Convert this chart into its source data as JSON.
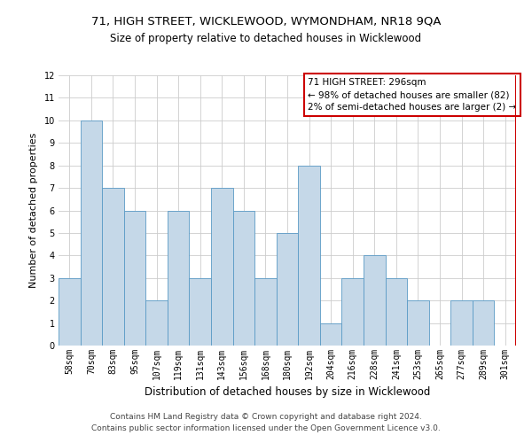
{
  "title": "71, HIGH STREET, WICKLEWOOD, WYMONDHAM, NR18 9QA",
  "subtitle": "Size of property relative to detached houses in Wicklewood",
  "xlabel": "Distribution of detached houses by size in Wicklewood",
  "ylabel": "Number of detached properties",
  "categories": [
    "58sqm",
    "70sqm",
    "83sqm",
    "95sqm",
    "107sqm",
    "119sqm",
    "131sqm",
    "143sqm",
    "156sqm",
    "168sqm",
    "180sqm",
    "192sqm",
    "204sqm",
    "216sqm",
    "228sqm",
    "241sqm",
    "253sqm",
    "265sqm",
    "277sqm",
    "289sqm",
    "301sqm"
  ],
  "values": [
    3,
    10,
    7,
    6,
    2,
    6,
    3,
    7,
    6,
    3,
    5,
    8,
    1,
    3,
    4,
    3,
    2,
    0,
    2,
    2,
    0
  ],
  "bar_color": "#c5d8e8",
  "bar_edge_color": "#5a9ac5",
  "grid_color": "#cccccc",
  "red_line_color": "#cc0000",
  "annotation_text": "71 HIGH STREET: 296sqm\n← 98% of detached houses are smaller (82)\n2% of semi-detached houses are larger (2) →",
  "annotation_box_color": "#cc0000",
  "ylim": [
    0,
    12
  ],
  "yticks": [
    0,
    1,
    2,
    3,
    4,
    5,
    6,
    7,
    8,
    9,
    10,
    11,
    12
  ],
  "footer_line1": "Contains HM Land Registry data © Crown copyright and database right 2024.",
  "footer_line2": "Contains public sector information licensed under the Open Government Licence v3.0.",
  "bg_color": "#ffffff",
  "title_fontsize": 9.5,
  "subtitle_fontsize": 8.5,
  "ylabel_fontsize": 8,
  "xlabel_fontsize": 8.5,
  "tick_fontsize": 7,
  "annotation_fontsize": 7.5,
  "footer_fontsize": 6.5
}
